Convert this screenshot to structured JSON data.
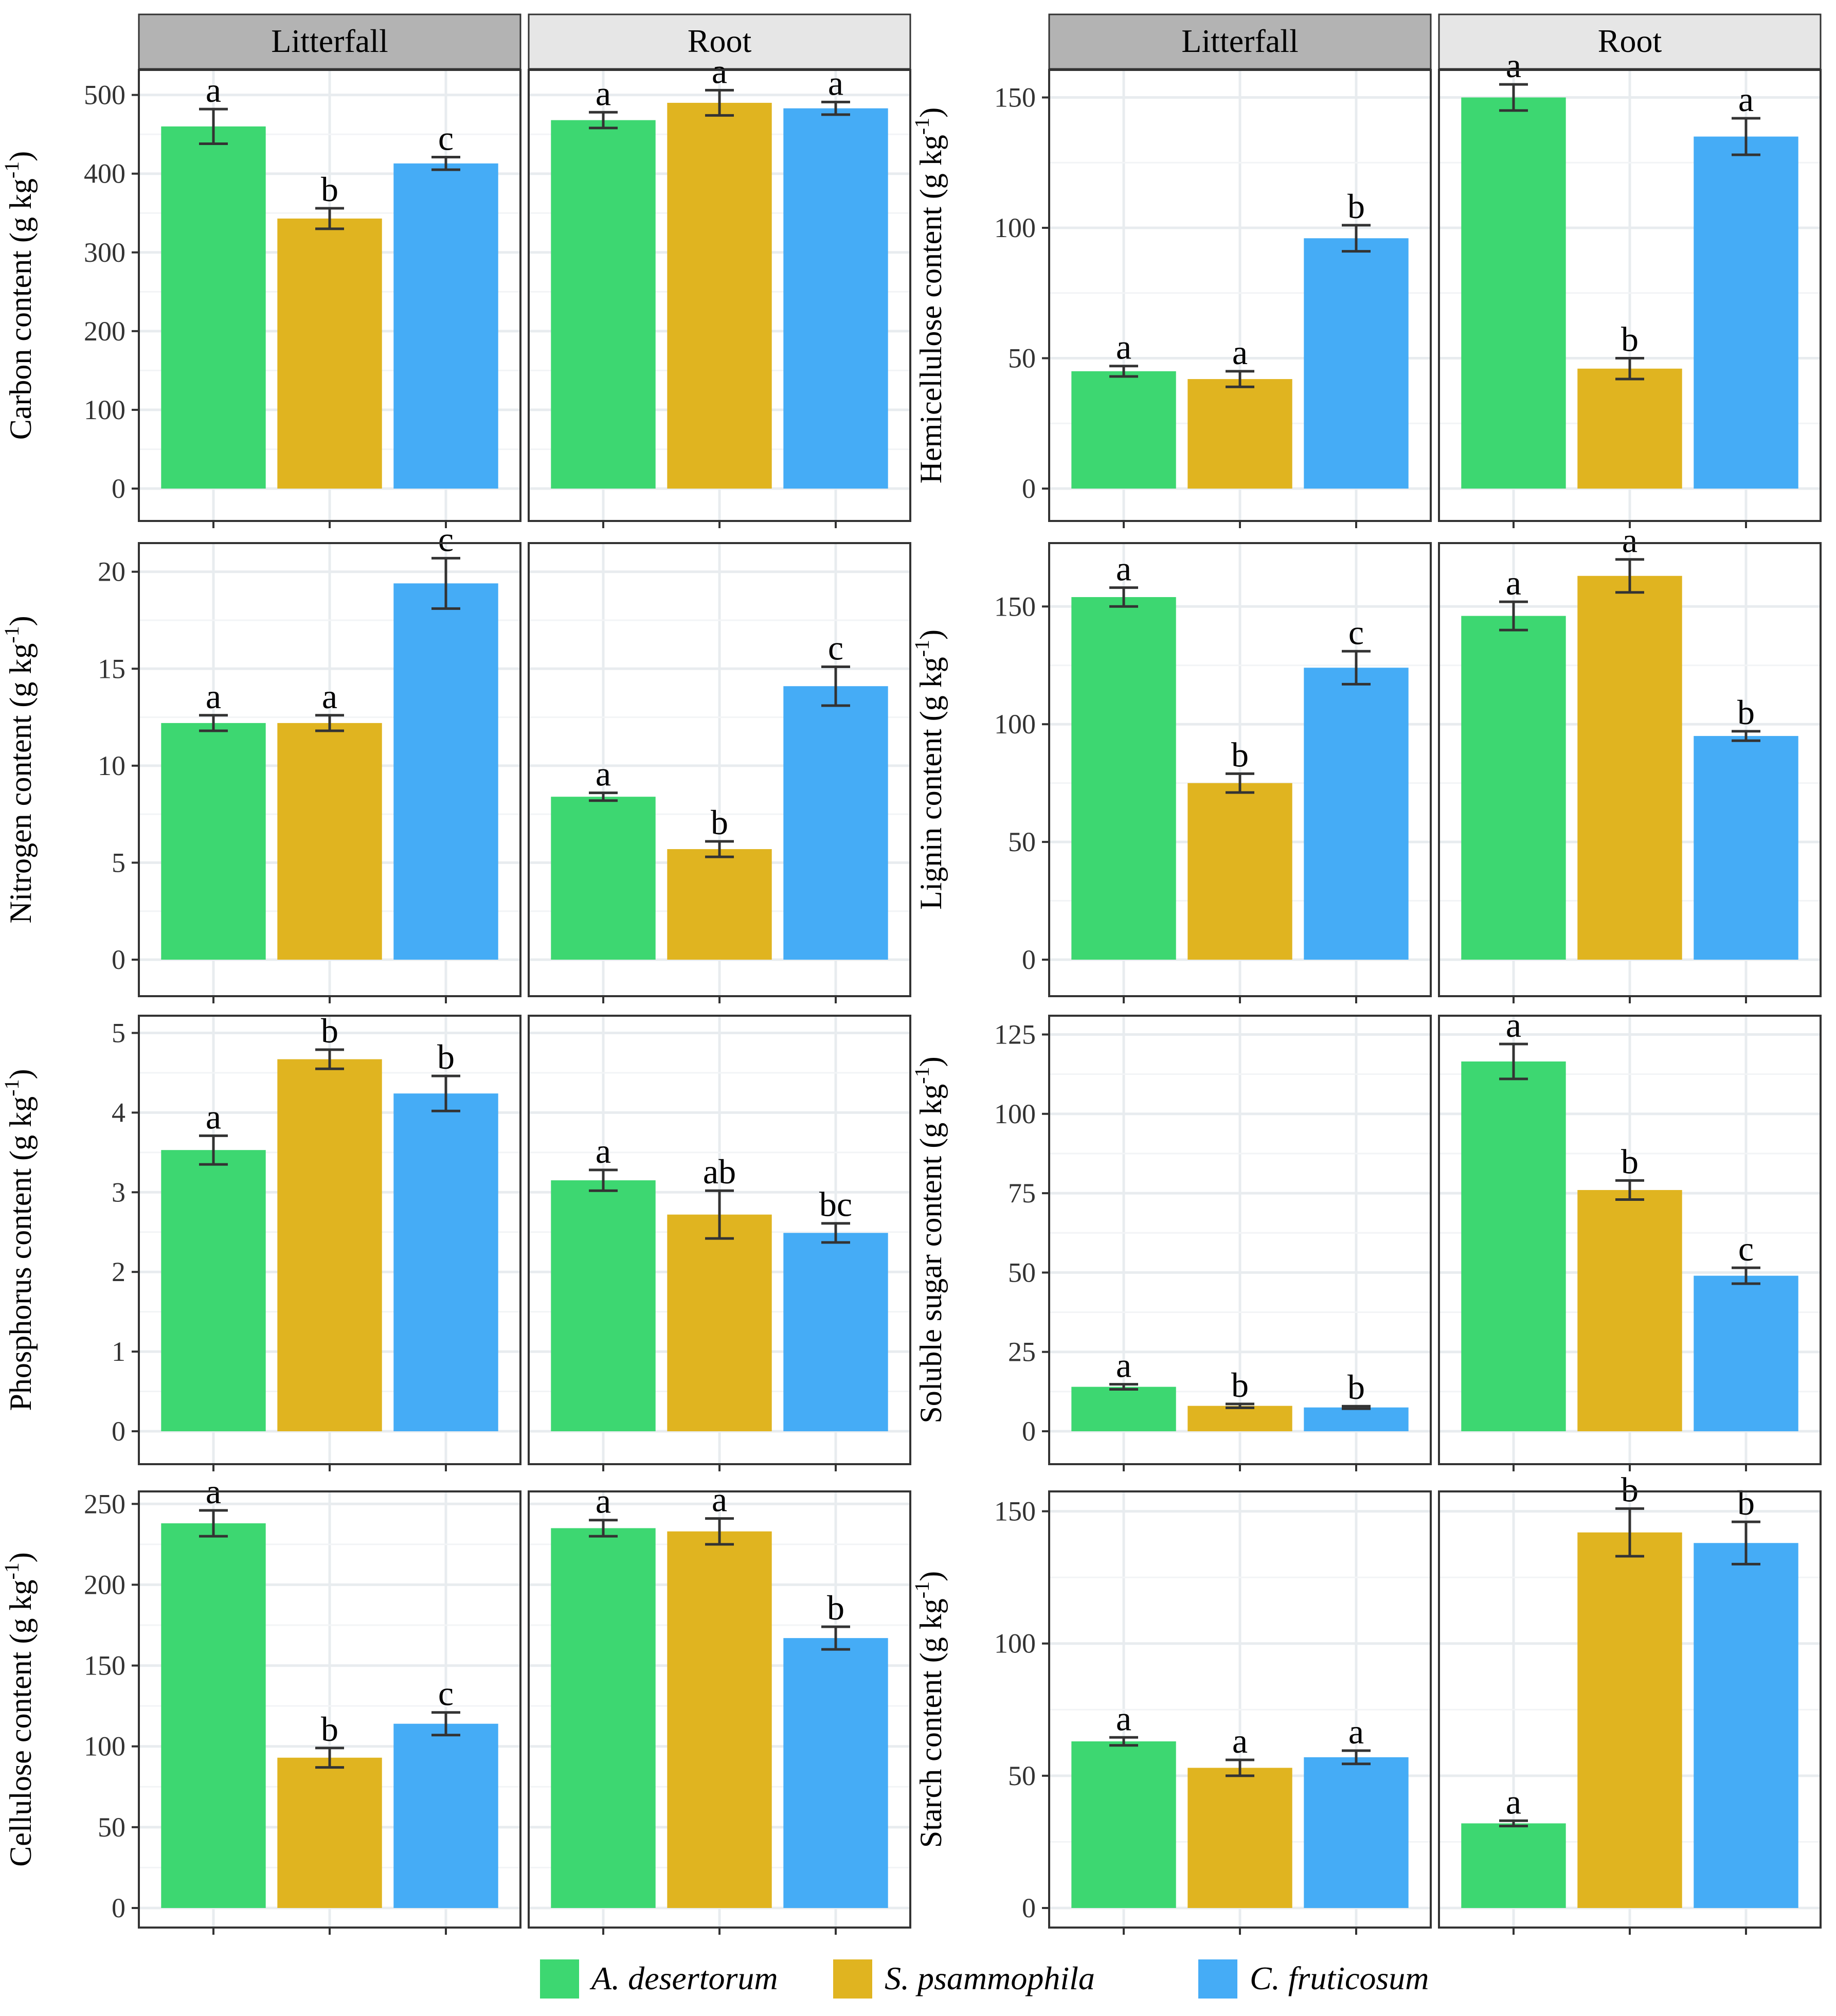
{
  "figure": {
    "facets": [
      "Litterfall",
      "Root"
    ],
    "species": [
      "A. desertorum",
      "S. psammophila",
      "C. fruticosum"
    ],
    "colors": [
      "#3dd771",
      "#e0b420",
      "#45acf6"
    ]
  },
  "legend": {
    "items": [
      {
        "label": "A. desertorum",
        "color": "#3dd771"
      },
      {
        "label": "S. psammophila",
        "color": "#e0b420"
      },
      {
        "label": "C. fruticosum",
        "color": "#45acf6"
      }
    ]
  },
  "chart_data": [
    {
      "type": "bar",
      "id": "carbon",
      "ylabel": "Carbon content (g kg-1)",
      "ylim": [
        0,
        520
      ],
      "yticks": [
        0,
        100,
        200,
        300,
        400,
        500
      ],
      "facets": [
        {
          "name": "Litterfall",
          "values": [
            460,
            343,
            413
          ],
          "errors": [
            22,
            13,
            8
          ],
          "letters": [
            "a",
            "b",
            "c"
          ]
        },
        {
          "name": "Root",
          "values": [
            468,
            490,
            483
          ],
          "errors": [
            10,
            16,
            8
          ],
          "letters": [
            "a",
            "a",
            "a"
          ]
        }
      ]
    },
    {
      "type": "bar",
      "id": "hemicellulose",
      "ylabel": "Hemicellulose content (g kg-1)",
      "ylim": [
        0,
        157
      ],
      "yticks": [
        0,
        50,
        100,
        150
      ],
      "facets": [
        {
          "name": "Litterfall",
          "values": [
            45,
            42,
            96
          ],
          "errors": [
            2,
            3,
            5
          ],
          "letters": [
            "a",
            "a",
            "b"
          ]
        },
        {
          "name": "Root",
          "values": [
            150,
            46,
            135
          ],
          "errors": [
            5,
            4,
            7
          ],
          "letters": [
            "a",
            "b",
            "a"
          ]
        }
      ]
    },
    {
      "type": "bar",
      "id": "nitrogen",
      "ylabel": "Nitrogen content (g kg-1)",
      "ylim": [
        0,
        21
      ],
      "yticks": [
        0,
        5,
        10,
        15,
        20
      ],
      "facets": [
        {
          "name": "Litterfall",
          "values": [
            12.2,
            12.2,
            19.4
          ],
          "errors": [
            0.4,
            0.4,
            1.3
          ],
          "letters": [
            "a",
            "a",
            "c"
          ]
        },
        {
          "name": "Root",
          "values": [
            8.4,
            5.7,
            14.1
          ],
          "errors": [
            0.2,
            0.4,
            1.0
          ],
          "letters": [
            "a",
            "b",
            "c"
          ]
        }
      ]
    },
    {
      "type": "bar",
      "id": "lignin",
      "ylabel": "Lignin content (g kg-1)",
      "ylim": [
        0,
        173
      ],
      "yticks": [
        0,
        50,
        100,
        150
      ],
      "facets": [
        {
          "name": "Litterfall",
          "values": [
            154,
            75,
            124
          ],
          "errors": [
            4,
            4,
            7
          ],
          "letters": [
            "a",
            "b",
            "c"
          ]
        },
        {
          "name": "Root",
          "values": [
            146,
            163,
            95
          ],
          "errors": [
            6,
            7,
            2
          ],
          "letters": [
            "a",
            "a",
            "b"
          ]
        }
      ]
    },
    {
      "type": "bar",
      "id": "phosphorus",
      "ylabel": "Phosphorus content (g kg-1)",
      "ylim": [
        0,
        5.1
      ],
      "yticks": [
        0,
        1,
        2,
        3,
        4,
        5
      ],
      "facets": [
        {
          "name": "Litterfall",
          "values": [
            3.53,
            4.67,
            4.24
          ],
          "errors": [
            0.18,
            0.12,
            0.22
          ],
          "letters": [
            "a",
            "b",
            "b"
          ]
        },
        {
          "name": "Root",
          "values": [
            3.15,
            2.72,
            2.49
          ],
          "errors": [
            0.13,
            0.3,
            0.12
          ],
          "letters": [
            "a",
            "ab",
            "bc"
          ]
        }
      ]
    },
    {
      "type": "bar",
      "id": "soluble_sugar",
      "ylabel": "Soluble sugar content (g kg-1)",
      "ylim": [
        0,
        128
      ],
      "yticks": [
        0,
        25,
        50,
        75,
        100,
        125
      ],
      "facets": [
        {
          "name": "Litterfall",
          "values": [
            14,
            8,
            7.5
          ],
          "errors": [
            0.8,
            0.6,
            0.4
          ],
          "letters": [
            "a",
            "b",
            "b"
          ]
        },
        {
          "name": "Root",
          "values": [
            116.5,
            76,
            49
          ],
          "errors": [
            5.5,
            3,
            2.5
          ],
          "letters": [
            "a",
            "b",
            "c"
          ]
        }
      ]
    },
    {
      "type": "bar",
      "id": "cellulose",
      "ylabel": "Cellulose content (g kg-1)",
      "ylim": [
        0,
        252
      ],
      "yticks": [
        0,
        50,
        100,
        150,
        200,
        250
      ],
      "facets": [
        {
          "name": "Litterfall",
          "values": [
            238,
            93,
            114
          ],
          "errors": [
            8,
            6,
            7
          ],
          "letters": [
            "a",
            "b",
            "c"
          ]
        },
        {
          "name": "Root",
          "values": [
            235,
            233,
            167
          ],
          "errors": [
            5,
            8,
            7
          ],
          "letters": [
            "a",
            "a",
            "b"
          ]
        }
      ]
    },
    {
      "type": "bar",
      "id": "starch",
      "ylabel": "Starch content (g kg-1)",
      "ylim": [
        0,
        154
      ],
      "yticks": [
        0,
        50,
        100,
        150
      ],
      "facets": [
        {
          "name": "Litterfall",
          "values": [
            63,
            53,
            57
          ],
          "errors": [
            1.5,
            3,
            2.5
          ],
          "letters": [
            "a",
            "a",
            "a"
          ]
        },
        {
          "name": "Root",
          "values": [
            32,
            142,
            138
          ],
          "errors": [
            1,
            9,
            8
          ],
          "letters": [
            "a",
            "b",
            "b"
          ]
        }
      ]
    }
  ]
}
